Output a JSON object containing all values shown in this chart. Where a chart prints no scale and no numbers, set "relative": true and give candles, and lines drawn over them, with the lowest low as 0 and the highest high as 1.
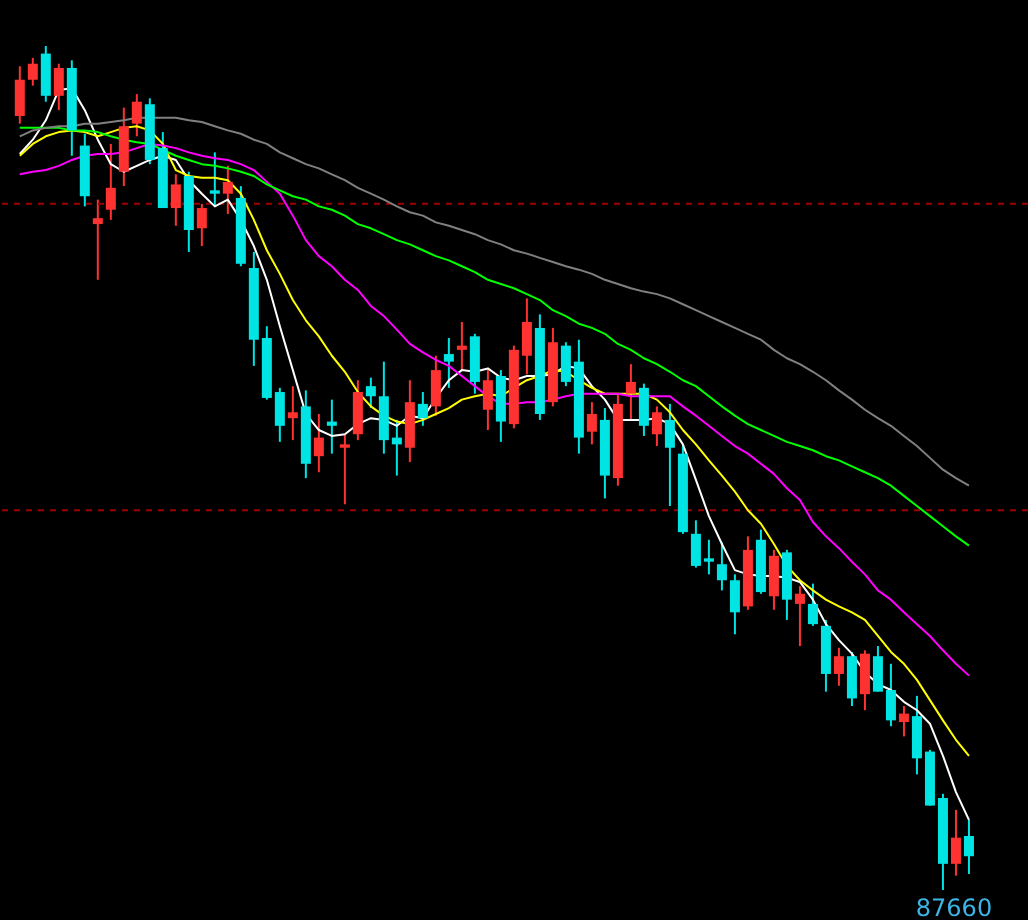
{
  "chart_data": {
    "type": "candlestick",
    "relative": true,
    "categories": [
      null,
      null,
      null,
      null,
      null,
      null,
      null,
      null,
      null,
      null,
      null,
      null,
      null,
      null,
      null,
      null,
      null,
      null,
      null,
      null,
      null,
      null,
      null,
      null,
      null,
      null,
      null,
      null,
      null,
      null,
      null,
      null,
      null,
      null,
      null,
      null,
      null,
      null,
      null,
      null,
      null,
      null,
      null,
      null,
      null,
      null,
      null,
      null,
      null,
      null,
      null,
      null,
      null,
      null,
      null,
      null,
      null,
      null,
      null,
      null,
      null,
      null,
      null,
      null,
      null,
      null,
      null,
      null,
      null,
      null,
      null,
      null,
      null,
      null
    ],
    "ohlc": [
      [
        0.917,
        0.976,
        0.908,
        0.96
      ],
      [
        0.96,
        0.986,
        0.953,
        0.979
      ],
      [
        0.991,
        1,
        0.934,
        0.941
      ],
      [
        0.941,
        0.979,
        0.924,
        0.974
      ],
      [
        0.974,
        0.983,
        0.87,
        0.9
      ],
      [
        0.882,
        0.896,
        0.81,
        0.822
      ],
      [
        0.789,
        0.818,
        0.723,
        0.796
      ],
      [
        0.806,
        0.884,
        0.794,
        0.832
      ],
      [
        0.851,
        0.927,
        0.834,
        0.905
      ],
      [
        0.908,
        0.943,
        0.893,
        0.934
      ],
      [
        0.931,
        0.938,
        0.86,
        0.865
      ],
      [
        0.879,
        0.898,
        0.808,
        0.808
      ],
      [
        0.808,
        0.848,
        0.787,
        0.836
      ],
      [
        0.846,
        0.851,
        0.756,
        0.782
      ],
      [
        0.784,
        0.813,
        0.763,
        0.808
      ],
      [
        0.829,
        0.874,
        0.81,
        0.825
      ],
      [
        0.825,
        0.858,
        0.801,
        0.839
      ],
      [
        0.82,
        0.834,
        0.739,
        0.742
      ],
      [
        0.737,
        0.756,
        0.621,
        0.652
      ],
      [
        0.654,
        0.668,
        0.581,
        0.583
      ],
      [
        0.59,
        0.595,
        0.531,
        0.55
      ],
      [
        0.559,
        0.597,
        0.533,
        0.566
      ],
      [
        0.573,
        0.592,
        0.488,
        0.505
      ],
      [
        0.514,
        0.564,
        0.495,
        0.536
      ],
      [
        0.555,
        0.581,
        0.517,
        0.55
      ],
      [
        0.524,
        0.54,
        0.457,
        0.528
      ],
      [
        0.54,
        0.604,
        0.533,
        0.59
      ],
      [
        0.597,
        0.607,
        0.571,
        0.585
      ],
      [
        0.585,
        0.626,
        0.517,
        0.533
      ],
      [
        0.536,
        0.557,
        0.491,
        0.528
      ],
      [
        0.524,
        0.604,
        0.507,
        0.578
      ],
      [
        0.576,
        0.59,
        0.55,
        0.559
      ],
      [
        0.573,
        0.633,
        0.562,
        0.616
      ],
      [
        0.635,
        0.654,
        0.595,
        0.626
      ],
      [
        0.64,
        0.673,
        0.616,
        0.645
      ],
      [
        0.656,
        0.659,
        0.588,
        0.602
      ],
      [
        0.569,
        0.616,
        0.545,
        0.604
      ],
      [
        0.609,
        0.616,
        0.531,
        0.555
      ],
      [
        0.552,
        0.645,
        0.547,
        0.64
      ],
      [
        0.633,
        0.701,
        0.611,
        0.673
      ],
      [
        0.666,
        0.682,
        0.557,
        0.564
      ],
      [
        0.578,
        0.666,
        0.573,
        0.649
      ],
      [
        0.645,
        0.649,
        0.597,
        0.602
      ],
      [
        0.626,
        0.652,
        0.517,
        0.536
      ],
      [
        0.543,
        0.578,
        0.528,
        0.564
      ],
      [
        0.557,
        0.571,
        0.464,
        0.491
      ],
      [
        0.488,
        0.588,
        0.479,
        0.576
      ],
      [
        0.588,
        0.623,
        0.557,
        0.602
      ],
      [
        0.595,
        0.6,
        0.538,
        0.55
      ],
      [
        0.54,
        0.573,
        0.526,
        0.566
      ],
      [
        0.557,
        0.576,
        0.455,
        0.524
      ],
      [
        0.517,
        0.528,
        0.422,
        0.424
      ],
      [
        0.422,
        0.438,
        0.382,
        0.384
      ],
      [
        0.393,
        0.415,
        0.374,
        0.389
      ],
      [
        0.386,
        0.412,
        0.355,
        0.367
      ],
      [
        0.367,
        0.374,
        0.303,
        0.329
      ],
      [
        0.336,
        0.419,
        0.332,
        0.403
      ],
      [
        0.415,
        0.427,
        0.351,
        0.353
      ],
      [
        0.348,
        0.403,
        0.332,
        0.396
      ],
      [
        0.4,
        0.403,
        0.32,
        0.344
      ],
      [
        0.339,
        0.36,
        0.289,
        0.351
      ],
      [
        0.339,
        0.363,
        0.313,
        0.315
      ],
      [
        0.313,
        0.32,
        0.235,
        0.256
      ],
      [
        0.256,
        0.287,
        0.242,
        0.277
      ],
      [
        0.277,
        0.282,
        0.218,
        0.227
      ],
      [
        0.232,
        0.284,
        0.213,
        0.28
      ],
      [
        0.277,
        0.289,
        0.235,
        0.235
      ],
      [
        0.237,
        0.268,
        0.194,
        0.201
      ],
      [
        0.199,
        0.218,
        0.182,
        0.209
      ],
      [
        0.206,
        0.23,
        0.137,
        0.156
      ],
      [
        0.164,
        0.166,
        0.1,
        0.1
      ],
      [
        0.109,
        0.114,
        0,
        0.031
      ],
      [
        0.031,
        0.095,
        0.017,
        0.062
      ],
      [
        0.064,
        0.083,
        0.019,
        0.04
      ]
    ],
    "colors": [
      "#ff3232",
      "#ff3232",
      "#00e4e4",
      "#ff3232",
      "#00e4e4",
      "#00e4e4",
      "#ff3232",
      "#ff3232",
      "#ff3232",
      "#ff3232",
      "#00e4e4",
      "#00e4e4",
      "#ff3232",
      "#00e4e4",
      "#ff3232",
      "#00e4e4",
      "#ff3232",
      "#00e4e4",
      "#00e4e4",
      "#00e4e4",
      "#00e4e4",
      "#ff3232",
      "#00e4e4",
      "#ff3232",
      "#00e4e4",
      "#ff3232",
      "#ff3232",
      "#00e4e4",
      "#00e4e4",
      "#00e4e4",
      "#ff3232",
      "#00e4e4",
      "#ff3232",
      "#00e4e4",
      "#ff3232",
      "#00e4e4",
      "#ff3232",
      "#00e4e4",
      "#ff3232",
      "#ff3232",
      "#00e4e4",
      "#ff3232",
      "#00e4e4",
      "#00e4e4",
      "#ff3232",
      "#00e4e4",
      "#ff3232",
      "#ff3232",
      "#00e4e4",
      "#ff3232",
      "#00e4e4",
      "#00e4e4",
      "#00e4e4",
      "#00e4e4",
      "#00e4e4",
      "#00e4e4",
      "#ff3232",
      "#00e4e4",
      "#ff3232",
      "#00e4e4",
      "#ff3232",
      "#00e4e4",
      "#00e4e4",
      "#ff3232",
      "#00e4e4",
      "#ff3232",
      "#00e4e4",
      "#00e4e4",
      "#ff3232",
      "#00e4e4",
      "#00e4e4",
      "#00e4e4",
      "#ff3232",
      "#00e4e4"
    ],
    "series": [
      {
        "type": "line",
        "color": "#ffffff",
        "values": [
          0.872,
          0.889,
          0.912,
          0.948,
          0.95,
          0.924,
          0.889,
          0.86,
          0.851,
          0.858,
          0.865,
          0.87,
          0.865,
          0.841,
          0.825,
          0.81,
          0.818,
          0.794,
          0.763,
          0.723,
          0.668,
          0.616,
          0.564,
          0.545,
          0.538,
          0.54,
          0.552,
          0.559,
          0.557,
          0.55,
          0.562,
          0.559,
          0.583,
          0.604,
          0.616,
          0.614,
          0.618,
          0.607,
          0.604,
          0.609,
          0.609,
          0.611,
          0.621,
          0.618,
          0.597,
          0.581,
          0.557,
          0.557,
          0.557,
          0.559,
          0.552,
          0.528,
          0.486,
          0.443,
          0.41,
          0.379,
          0.374,
          0.372,
          0.372,
          0.37,
          0.365,
          0.344,
          0.315,
          0.296,
          0.28,
          0.258,
          0.244,
          0.237,
          0.223,
          0.213,
          0.197,
          0.159,
          0.116,
          0.083
        ]
      },
      {
        "type": "line",
        "color": "#ffff00",
        "values": [
          0.87,
          0.884,
          0.893,
          0.898,
          0.9,
          0.898,
          0.893,
          0.898,
          0.903,
          0.905,
          0.9,
          0.884,
          0.853,
          0.846,
          0.844,
          0.844,
          0.841,
          0.825,
          0.794,
          0.758,
          0.73,
          0.699,
          0.675,
          0.656,
          0.633,
          0.614,
          0.59,
          0.573,
          0.562,
          0.555,
          0.552,
          0.557,
          0.564,
          0.571,
          0.581,
          0.585,
          0.588,
          0.585,
          0.595,
          0.604,
          0.609,
          0.616,
          0.614,
          0.604,
          0.595,
          0.588,
          0.588,
          0.588,
          0.588,
          0.581,
          0.566,
          0.545,
          0.528,
          0.509,
          0.491,
          0.472,
          0.45,
          0.434,
          0.41,
          0.384,
          0.367,
          0.355,
          0.344,
          0.336,
          0.329,
          0.32,
          0.301,
          0.282,
          0.268,
          0.249,
          0.225,
          0.201,
          0.178,
          0.159
        ]
      },
      {
        "type": "line",
        "color": "#ff00ff",
        "values": [
          0.848,
          0.851,
          0.853,
          0.858,
          0.865,
          0.87,
          0.872,
          0.872,
          0.874,
          0.879,
          0.884,
          0.882,
          0.879,
          0.874,
          0.87,
          0.867,
          0.865,
          0.86,
          0.853,
          0.839,
          0.825,
          0.799,
          0.77,
          0.751,
          0.739,
          0.723,
          0.711,
          0.692,
          0.68,
          0.664,
          0.647,
          0.637,
          0.628,
          0.621,
          0.609,
          0.597,
          0.585,
          0.576,
          0.576,
          0.578,
          0.578,
          0.581,
          0.585,
          0.588,
          0.588,
          0.588,
          0.588,
          0.585,
          0.585,
          0.585,
          0.585,
          0.573,
          0.562,
          0.55,
          0.538,
          0.526,
          0.517,
          0.505,
          0.493,
          0.476,
          0.462,
          0.436,
          0.419,
          0.405,
          0.389,
          0.374,
          0.355,
          0.344,
          0.329,
          0.315,
          0.301,
          0.284,
          0.268,
          0.254
        ]
      },
      {
        "type": "line",
        "color": "#00ff00",
        "values": [
          0.903,
          0.903,
          0.903,
          0.903,
          0.9,
          0.9,
          0.898,
          0.893,
          0.889,
          0.886,
          0.884,
          0.877,
          0.87,
          0.865,
          0.86,
          0.858,
          0.855,
          0.851,
          0.846,
          0.836,
          0.829,
          0.822,
          0.818,
          0.81,
          0.806,
          0.799,
          0.789,
          0.784,
          0.777,
          0.77,
          0.765,
          0.758,
          0.751,
          0.746,
          0.739,
          0.732,
          0.723,
          0.718,
          0.713,
          0.706,
          0.699,
          0.687,
          0.68,
          0.671,
          0.666,
          0.659,
          0.647,
          0.64,
          0.63,
          0.623,
          0.614,
          0.604,
          0.597,
          0.585,
          0.573,
          0.562,
          0.552,
          0.545,
          0.538,
          0.531,
          0.526,
          0.521,
          0.514,
          0.509,
          0.502,
          0.495,
          0.488,
          0.479,
          0.467,
          0.455,
          0.443,
          0.431,
          0.419,
          0.408
        ]
      },
      {
        "type": "line",
        "color": "#808080",
        "values": [
          0.893,
          0.9,
          0.903,
          0.905,
          0.905,
          0.908,
          0.908,
          0.91,
          0.912,
          0.915,
          0.915,
          0.915,
          0.915,
          0.912,
          0.91,
          0.905,
          0.9,
          0.896,
          0.889,
          0.884,
          0.874,
          0.867,
          0.86,
          0.855,
          0.848,
          0.841,
          0.832,
          0.825,
          0.818,
          0.81,
          0.803,
          0.799,
          0.791,
          0.787,
          0.782,
          0.777,
          0.77,
          0.765,
          0.758,
          0.754,
          0.749,
          0.744,
          0.739,
          0.735,
          0.73,
          0.723,
          0.718,
          0.713,
          0.709,
          0.706,
          0.701,
          0.694,
          0.687,
          0.68,
          0.673,
          0.666,
          0.659,
          0.652,
          0.64,
          0.63,
          0.623,
          0.614,
          0.604,
          0.592,
          0.581,
          0.569,
          0.559,
          0.55,
          0.538,
          0.526,
          0.512,
          0.498,
          0.488,
          0.479
        ]
      }
    ],
    "ref_lines": [
      {
        "axis": "y",
        "value": 0.813,
        "color": "#a00000",
        "line_style": "dashed"
      },
      {
        "axis": "y",
        "value": 0.45,
        "color": "#a00000",
        "line_style": "dashed"
      }
    ],
    "annotations": [
      "87660"
    ]
  }
}
